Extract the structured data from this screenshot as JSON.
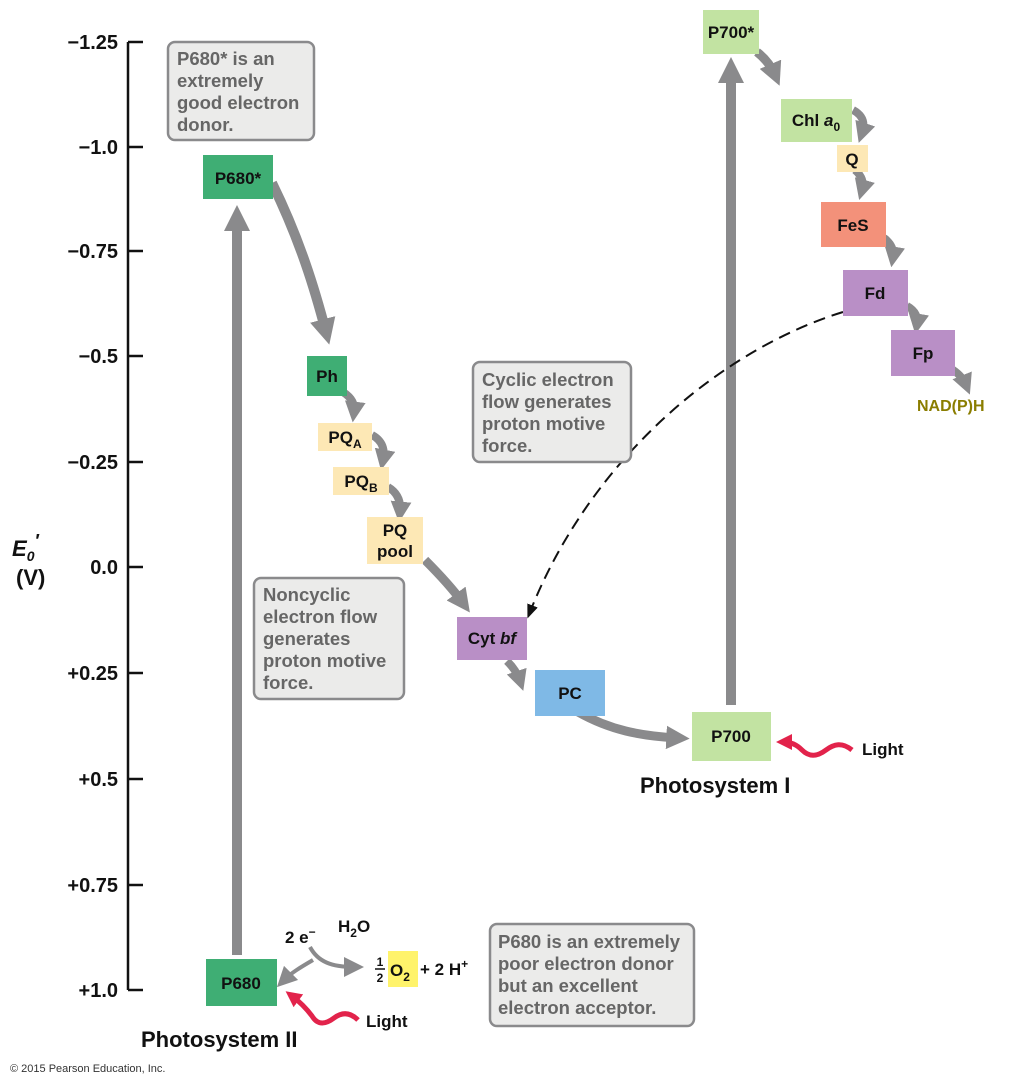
{
  "axis": {
    "label_main": "E",
    "label_sub": "0",
    "label_prime": "′",
    "label_unit": "(V)",
    "ticks": [
      "−1.25",
      "−1.0",
      "−0.75",
      "−0.5",
      "−0.25",
      "0.0",
      "+0.25",
      "+0.5",
      "+0.75",
      "+1.0"
    ]
  },
  "carriers": {
    "p680star": "P680*",
    "ph": "Ph",
    "pqa_main": "PQ",
    "pqa_sub": "A",
    "pqb_main": "PQ",
    "pqb_sub": "B",
    "pqpool_line1": "PQ",
    "pqpool_line2": "pool",
    "cytbf_main": "Cyt ",
    "cytbf_ital": "bf",
    "pc": "PC",
    "p700": "P700",
    "p700star": "P700*",
    "chla0_main": "Chl ",
    "chla0_ital": "a",
    "chla0_sub": "0",
    "q": "Q",
    "fes": "FeS",
    "fd": "Fd",
    "fp": "Fp",
    "nadph": "NAD(P)H",
    "p680": "P680"
  },
  "notes": {
    "p680star_note": [
      "P680* is an",
      "extremely",
      "good electron",
      "donor."
    ],
    "cyclic_note": [
      "Cyclic electron",
      "flow generates",
      "proton motive",
      "force."
    ],
    "noncyclic_note": [
      "Noncyclic",
      "electron flow",
      "generates",
      "proton motive",
      "force."
    ],
    "p680_note": [
      "P680 is an extremely",
      "poor electron donor",
      "but an excellent",
      "electron acceptor."
    ]
  },
  "water_split": {
    "electrons_main": "2 e",
    "electrons_sup": "−",
    "water_main": "H",
    "water_sub": "2",
    "water_end": "O",
    "half_num": "1",
    "half_den": "2",
    "o2_main": "O",
    "o2_sub": "2",
    "protons_main": "+ 2 H",
    "protons_sup": "+"
  },
  "light_label_ps1": "Light",
  "light_label_ps2": "Light",
  "photosystem_1": "Photosystem I",
  "photosystem_2": "Photosystem II",
  "copyright": "© 2015 Pearson Education, Inc.",
  "colors": {
    "green_dark": "#3fae74",
    "green_light": "#c2e3a2",
    "pale_yellow": "#fde8b5",
    "purple": "#b98fc6",
    "blue": "#7fb9e6",
    "salmon": "#f3917a",
    "yellow": "#fff36b",
    "arrow_gray": "#8a8a8c",
    "light_red": "#e2234b",
    "nadph_olive": "#8a7d00"
  }
}
